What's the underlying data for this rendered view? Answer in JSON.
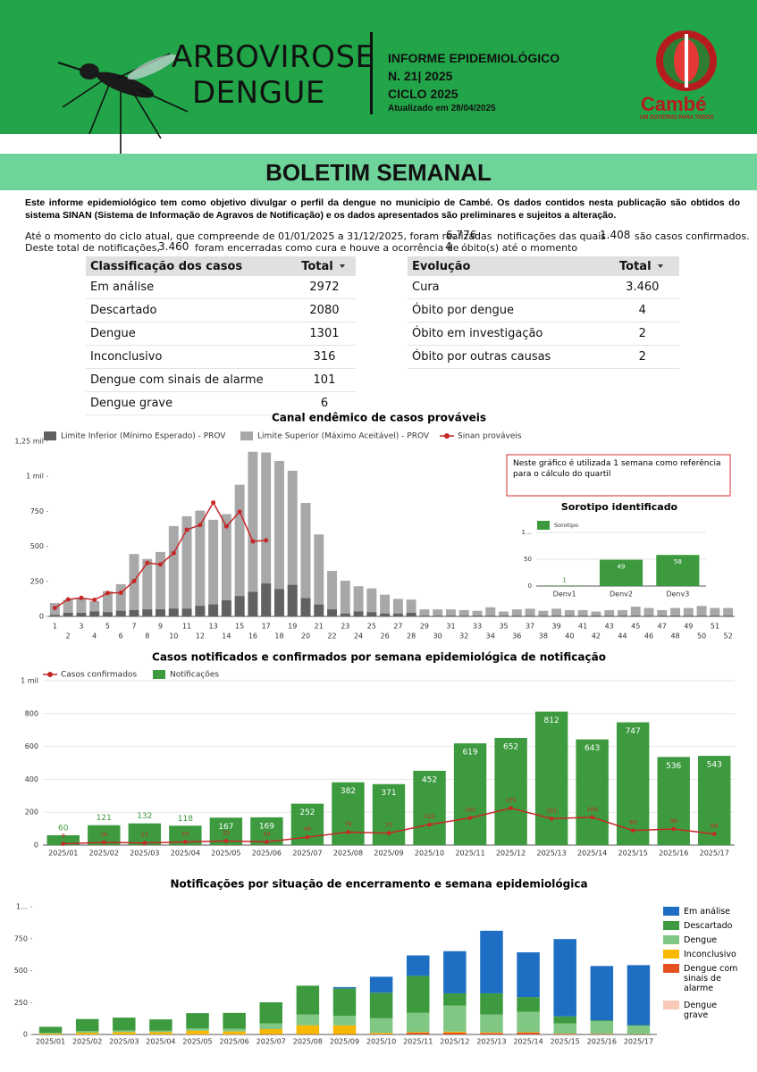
{
  "header": {
    "title_lines": [
      "ARBOVIROSE",
      "DENGUE"
    ],
    "info_lines": [
      "INFORME EPIDEMIOLÓGICO",
      "N. 21| 2025",
      "CICLO 2025"
    ],
    "updated": "Atualizado em 28/04/2025",
    "logo_name": "Cambé",
    "logo_slogan": "UM GOVERNO PARA TODOS"
  },
  "banner": "BOLETIM SEMANAL",
  "intro": "Este informe epidemiológico tem como objetivo divulgar o perfil da dengue no município de Cambé. Os dados contidos nesta publicação são obtidos do sistema SINAN (Sistema de Informação de Agravos de Notificação) e os dados apresentados são preliminares e sujeitos a alteração.",
  "summary": {
    "line1_a": "Até o momento do ciclo atual, que compreende de 01/01/2025 a 31/12/2025, foram realizadas",
    "notifications": "6.776",
    "line1_b": "notificações das quais",
    "confirmed": "1.408",
    "line1_c": "são casos confirmados.",
    "line2_a": "Deste total de notificações,",
    "cured": "3.460",
    "line2_b": "foram encerradas como cura e houve a ocorrência de",
    "deaths": "4",
    "line2_c": "óbito(s) até o momento"
  },
  "tables": [
    {
      "headers": [
        "Classificação dos casos",
        "Total"
      ],
      "rows": [
        [
          "Em análise",
          "2972"
        ],
        [
          "Descartado",
          "2080"
        ],
        [
          "Dengue",
          "1301"
        ],
        [
          "Inconclusivo",
          "316"
        ],
        [
          "Dengue com sinais de alarme",
          "101"
        ],
        [
          "Dengue grave",
          "6"
        ]
      ]
    },
    {
      "headers": [
        "Evolução",
        "Total"
      ],
      "rows": [
        [
          "Cura",
          "3.460"
        ],
        [
          "Óbito por dengue",
          "4"
        ],
        [
          "Óbito em investigação",
          "2"
        ],
        [
          "Óbito por outras causas",
          "2"
        ]
      ]
    }
  ],
  "chart_data": [
    {
      "type": "bar",
      "title": "Canal endêmico de casos prováveis",
      "annotation": "Neste gráfico é utilizada 1 semana como referência para o cálculo do quartil",
      "categories": [
        "1",
        "2",
        "3",
        "4",
        "5",
        "6",
        "7",
        "8",
        "9",
        "10",
        "11",
        "12",
        "13",
        "14",
        "15",
        "16",
        "17",
        "18",
        "19",
        "20",
        "21",
        "22",
        "23",
        "24",
        "25",
        "26",
        "27",
        "28",
        "29",
        "30",
        "31",
        "32",
        "33",
        "34",
        "35",
        "36",
        "37",
        "38",
        "39",
        "40",
        "41",
        "42",
        "43",
        "44",
        "45",
        "46",
        "47",
        "48",
        "49",
        "50",
        "51",
        "52"
      ],
      "series": [
        {
          "name": "Limite Inferior (Mínimo Esperado) - PROV",
          "color": "#616161",
          "values": [
            10,
            25,
            25,
            35,
            30,
            40,
            45,
            50,
            50,
            55,
            55,
            75,
            85,
            115,
            145,
            175,
            235,
            195,
            225,
            130,
            85,
            50,
            20,
            35,
            30,
            20,
            20,
            25,
            5,
            5,
            5,
            5,
            5,
            5,
            5,
            5,
            5,
            5,
            5,
            5,
            5,
            5,
            5,
            5,
            5,
            5,
            5,
            5,
            5,
            5,
            5,
            5
          ]
        },
        {
          "name": "Limite Superior (Máximo Aceitável) - PROV",
          "color": "#a8a8a8",
          "values": [
            95,
            120,
            130,
            110,
            180,
            230,
            445,
            410,
            460,
            645,
            715,
            755,
            690,
            730,
            940,
            1175,
            1170,
            1110,
            1040,
            810,
            585,
            325,
            255,
            215,
            200,
            155,
            125,
            120,
            50,
            50,
            50,
            45,
            40,
            65,
            35,
            50,
            55,
            40,
            55,
            45,
            45,
            35,
            45,
            45,
            70,
            60,
            45,
            60,
            60,
            75,
            60,
            60
          ]
        },
        {
          "name": "Sinan prováveis",
          "type": "line",
          "color": "#c62828",
          "values": [
            60,
            121,
            132,
            118,
            167,
            169,
            252,
            382,
            371,
            452,
            619,
            652,
            812,
            643,
            747,
            536,
            543,
            null,
            null,
            null,
            null,
            null,
            null,
            null,
            null,
            null,
            null,
            null,
            null,
            null,
            null,
            null,
            null,
            null,
            null,
            null,
            null,
            null,
            null,
            null,
            null,
            null,
            null,
            null,
            null,
            null,
            null,
            null,
            null,
            null,
            null,
            null
          ]
        }
      ],
      "ylim": [
        0,
        1250
      ],
      "yticks": [
        0,
        250,
        500,
        750,
        {
          "value": 1000,
          "label": "1 mil"
        },
        {
          "value": 1250,
          "label": "1,25 mil"
        }
      ],
      "grid": false
    },
    {
      "type": "bar",
      "title": "Sorotipo identificado",
      "categories": [
        "Denv1",
        "Denv2",
        "Denv3"
      ],
      "series": [
        {
          "name": "Sorotipo",
          "color": "#3d9a3f",
          "values": [
            1,
            49,
            58
          ]
        }
      ],
      "ylim": [
        0,
        100
      ],
      "yticks": [
        0,
        50,
        {
          "value": 100,
          "label": "1…"
        }
      ],
      "grid": true
    },
    {
      "type": "bar",
      "title": "Casos notificados e confirmados por semana epidemiológica de notificação",
      "categories": [
        "2025/01",
        "2025/02",
        "2025/03",
        "2025/04",
        "2025/05",
        "2025/06",
        "2025/07",
        "2025/08",
        "2025/09",
        "2025/10",
        "2025/11",
        "2025/12",
        "2025/13",
        "2025/14",
        "2025/15",
        "2025/16",
        "2025/17"
      ],
      "series": [
        {
          "name": "Casos confirmados",
          "type": "line",
          "color": "#c62828",
          "values": [
            8,
            16,
            13,
            20,
            25,
            20,
            48,
            79,
            73,
            125,
            165,
            225,
            161,
            169,
            89,
            98,
            68
          ]
        },
        {
          "name": "Notificações",
          "color": "#3d9a3f",
          "values": [
            60,
            121,
            132,
            118,
            167,
            169,
            252,
            382,
            371,
            452,
            619,
            652,
            812,
            643,
            747,
            536,
            543
          ]
        }
      ],
      "ylim": [
        0,
        1000
      ],
      "yticks": [
        0,
        200,
        400,
        600,
        800,
        {
          "value": 1000,
          "label": "1 mil"
        }
      ],
      "grid": true
    },
    {
      "type": "stacked_bar",
      "title": "Notificações por situação de encerramento e semana epidemiológica",
      "categories": [
        "2025/01",
        "2025/02",
        "2025/03",
        "2025/04",
        "2025/05",
        "2025/06",
        "2025/07",
        "2025/08",
        "2025/09",
        "2025/10",
        "2025/11",
        "2025/12",
        "2025/13",
        "2025/14",
        "2025/15",
        "2025/16",
        "2025/17"
      ],
      "series": [
        {
          "name": "Em análise",
          "color": "#1e6fc4",
          "values": [
            0,
            0,
            0,
            0,
            0,
            0,
            0,
            0,
            10,
            125,
            160,
            330,
            490,
            350,
            605,
            425,
            470
          ]
        },
        {
          "name": "Descartado",
          "color": "#3d9a3f",
          "values": [
            48,
            95,
            100,
            88,
            120,
            125,
            165,
            225,
            215,
            200,
            290,
            95,
            165,
            115,
            55,
            8,
            5
          ]
        },
        {
          "name": "Dengue",
          "color": "#81c784",
          "values": [
            5,
            12,
            14,
            12,
            17,
            20,
            45,
            85,
            75,
            115,
            150,
            205,
            140,
            160,
            80,
            98,
            65
          ]
        },
        {
          "name": "Inconclusivo",
          "color": "#f9b800",
          "values": [
            7,
            14,
            18,
            18,
            30,
            24,
            40,
            70,
            68,
            8,
            5,
            8,
            5,
            4,
            2,
            2,
            1
          ]
        },
        {
          "name": "Dengue com sinais de alarme",
          "color": "#e65122",
          "values": [
            0,
            0,
            0,
            0,
            0,
            0,
            2,
            2,
            3,
            4,
            13,
            13,
            11,
            13,
            5,
            3,
            2
          ]
        },
        {
          "name": "Dengue grave",
          "color": "#f8c9b6",
          "values": [
            0,
            0,
            0,
            0,
            0,
            0,
            0,
            0,
            0,
            0,
            1,
            1,
            1,
            1,
            0,
            0,
            0
          ]
        }
      ],
      "ylim": [
        0,
        1000
      ],
      "yticks": [
        0,
        250,
        500,
        750,
        {
          "value": 1000,
          "label": "1…"
        }
      ],
      "grid": false
    }
  ]
}
